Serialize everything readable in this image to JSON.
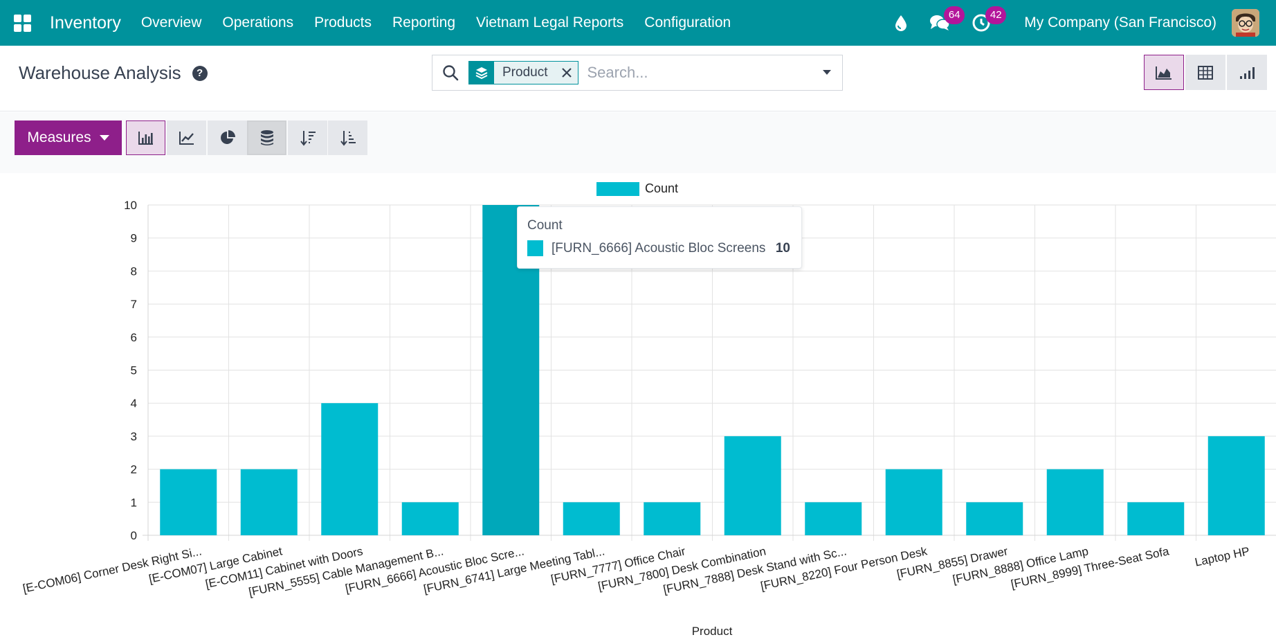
{
  "navbar": {
    "app_name": "Inventory",
    "menu": [
      "Overview",
      "Operations",
      "Products",
      "Reporting",
      "Vietnam Legal Reports",
      "Configuration"
    ],
    "messages_count": "64",
    "activities_count": "42",
    "company": "My Company (San Francisco)"
  },
  "control_panel": {
    "title": "Warehouse Analysis",
    "help": "?",
    "search": {
      "facet_value": "Product",
      "placeholder": "Search..."
    }
  },
  "toolbar": {
    "measures_label": "Measures"
  },
  "colors": {
    "navbar": "#00929c",
    "accent": "#8e1f8a",
    "bar": "#00bcd0",
    "bar_hover": "#00a8ba"
  },
  "chart_data": {
    "type": "bar",
    "xlabel": "Product",
    "ylabel": "",
    "ylim": [
      0,
      10
    ],
    "yticks": [
      0,
      1,
      2,
      3,
      4,
      5,
      6,
      7,
      8,
      9,
      10
    ],
    "grid": true,
    "legend_position": "top-center",
    "categories": [
      "[E-COM06] Corner Desk Right Si...",
      "[E-COM07] Large Cabinet",
      "[E-COM11] Cabinet with Doors",
      "[FURN_5555] Cable Management B...",
      "[FURN_6666] Acoustic Bloc Scre...",
      "[FURN_6741] Large Meeting Tabl...",
      "[FURN_7777] Office Chair",
      "[FURN_7800] Desk Combination",
      "[FURN_7888] Desk Stand with Sc...",
      "[FURN_8220] Four Person Desk",
      "[FURN_8855] Drawer",
      "[FURN_8888] Office Lamp",
      "[FURN_8999] Three-Seat Sofa",
      "Laptop HP"
    ],
    "series": [
      {
        "name": "Count",
        "values": [
          2,
          2,
          4,
          1,
          10,
          1,
          1,
          3,
          1,
          2,
          1,
          2,
          1,
          3
        ]
      }
    ],
    "tooltip": {
      "title": "Count",
      "label": "[FURN_6666] Acoustic Bloc Screens",
      "value": "10"
    }
  }
}
